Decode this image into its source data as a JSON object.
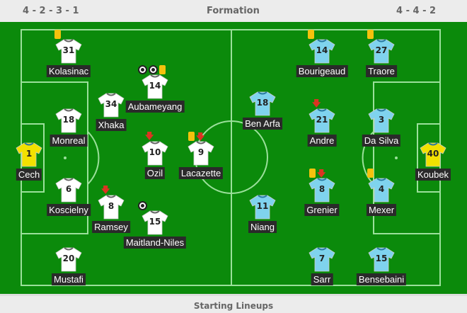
{
  "header": {
    "home_formation": "4 - 2 - 3 - 1",
    "title": "Formation",
    "away_formation": "4 - 4 - 2"
  },
  "footer": {
    "title": "Starting Lineups"
  },
  "colors": {
    "pitch": "#0b8a0b",
    "home_shirt": "#ffffff",
    "away_shirt": "#7fd3ee",
    "goalkeeper_shirt": "#f2e100",
    "card": "#f4c20d",
    "sub_arrow": "#d32222"
  },
  "home": [
    {
      "num": "31",
      "name": "Kolasinac",
      "card": true
    },
    {
      "num": "14",
      "name": "Aubameyang",
      "card": true,
      "goals": 2
    },
    {
      "num": "34",
      "name": "Xhaka"
    },
    {
      "num": "18",
      "name": "Monreal"
    },
    {
      "num": "1",
      "name": "Cech",
      "gk": true
    },
    {
      "num": "10",
      "name": "Ozil",
      "sub": true
    },
    {
      "num": "9",
      "name": "Lacazette",
      "card": true,
      "sub": true
    },
    {
      "num": "6",
      "name": "Koscielny"
    },
    {
      "num": "8",
      "name": "Ramsey",
      "sub": true
    },
    {
      "num": "15",
      "name": "Maitland-Niles",
      "goals": 1
    },
    {
      "num": "20",
      "name": "Mustafi"
    }
  ],
  "away": [
    {
      "num": "14",
      "name": "Bourigeaud",
      "card": true
    },
    {
      "num": "27",
      "name": "Traore",
      "card": true
    },
    {
      "num": "18",
      "name": "Ben Arfa"
    },
    {
      "num": "21",
      "name": "Andre",
      "sub": true
    },
    {
      "num": "3",
      "name": "Da Silva"
    },
    {
      "num": "40",
      "name": "Koubek",
      "gk": true
    },
    {
      "num": "8",
      "name": "Grenier",
      "card": true,
      "sub": true
    },
    {
      "num": "4",
      "name": "Mexer",
      "card": true
    },
    {
      "num": "11",
      "name": "Niang"
    },
    {
      "num": "7",
      "name": "Sarr"
    },
    {
      "num": "15",
      "name": "Bensebaini"
    }
  ]
}
